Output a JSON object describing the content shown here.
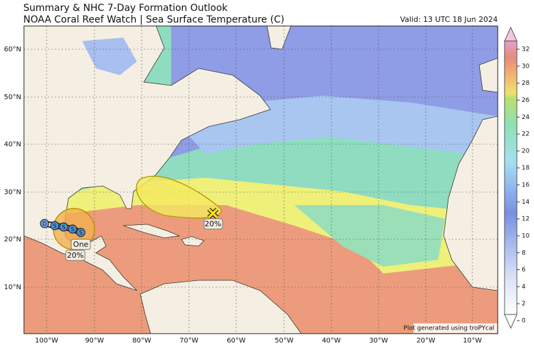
{
  "header": {
    "title": "Summary & NHC 7-Day Formation Outlook",
    "subtitle": "NOAA Coral Reef Watch | Sea Surface Temperature (C)",
    "valid": "Valid: 13 UTC 18 Jun 2024"
  },
  "map": {
    "lon_labels": [
      "100°W",
      "90°W",
      "80°W",
      "70°W",
      "60°W",
      "50°W",
      "40°W",
      "30°W",
      "20°W",
      "10°W"
    ],
    "lat_labels": [
      "60°N",
      "50°N",
      "40°N",
      "30°N",
      "20°N",
      "10°N"
    ],
    "credit": "Plot generated using troPYcal"
  },
  "annotations": {
    "atlantic_area": "20%",
    "storm_name": "One",
    "gulf_area": "20%",
    "track_labels": [
      "D",
      "S",
      "S",
      "S",
      "S"
    ]
  },
  "colorbar": {
    "lim": [
      0,
      32
    ],
    "ticks": [
      0,
      2,
      4,
      6,
      8,
      10,
      12,
      14,
      16,
      18,
      20,
      22,
      24,
      26,
      28,
      30,
      32
    ]
  }
}
